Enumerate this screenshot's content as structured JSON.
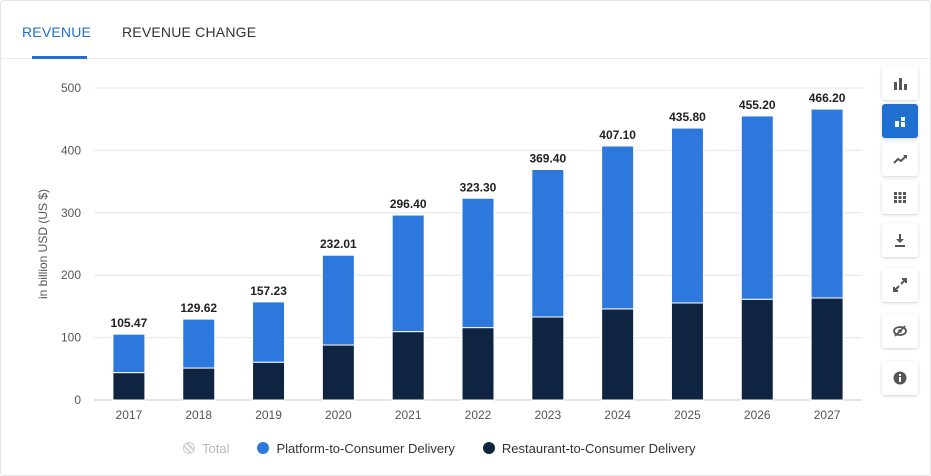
{
  "tabs": [
    {
      "label": "REVENUE",
      "active": true
    },
    {
      "label": "REVENUE CHANGE",
      "active": false
    }
  ],
  "toolbar": {
    "buttons": [
      {
        "icon": "bar-chart-icon",
        "active": false
      },
      {
        "icon": "stacked-bar-icon",
        "active": true
      },
      {
        "icon": "trend-line-icon",
        "active": false
      },
      {
        "icon": "table-grid-icon",
        "active": false
      },
      {
        "icon": "download-icon",
        "active": false
      },
      {
        "icon": "fullscreen-icon",
        "active": false
      },
      {
        "icon": "hide-icon",
        "active": false
      },
      {
        "icon": "info-icon",
        "active": false
      }
    ]
  },
  "colors": {
    "accent": "#1f6fd1",
    "platform": "#2c78dc",
    "restaurant": "#0f2440",
    "total": "#cfcfcf"
  },
  "chart_data": {
    "type": "bar",
    "stacked": true,
    "categories": [
      "2017",
      "2018",
      "2019",
      "2020",
      "2021",
      "2022",
      "2023",
      "2024",
      "2025",
      "2026",
      "2027"
    ],
    "series": [
      {
        "name": "Restaurant-to-Consumer Delivery",
        "color": "#0f2440",
        "values": [
          43.9,
          51.2,
          60.6,
          88.1,
          109.6,
          116.0,
          133.0,
          146.0,
          155.5,
          161.5,
          163.5
        ]
      },
      {
        "name": "Platform-to-Consumer Delivery",
        "color": "#2c78dc",
        "values": [
          61.57,
          78.42,
          96.63,
          143.91,
          186.8,
          207.3,
          236.4,
          261.1,
          280.3,
          293.7,
          302.7
        ]
      }
    ],
    "totals": [
      "105.47",
      "129.62",
      "157.23",
      "232.01",
      "296.40",
      "323.30",
      "369.40",
      "407.10",
      "435.80",
      "455.20",
      "466.20"
    ],
    "ylabel": "in billion USD (US $)",
    "ylim": [
      0,
      500
    ],
    "yticks": [
      0,
      100,
      200,
      300,
      400,
      500
    ],
    "grid": true,
    "legend": {
      "position": "bottom",
      "items": [
        {
          "label": "Total",
          "disabled": true
        },
        {
          "label": "Platform-to-Consumer Delivery",
          "disabled": false
        },
        {
          "label": "Restaurant-to-Consumer Delivery",
          "disabled": false
        }
      ]
    }
  }
}
